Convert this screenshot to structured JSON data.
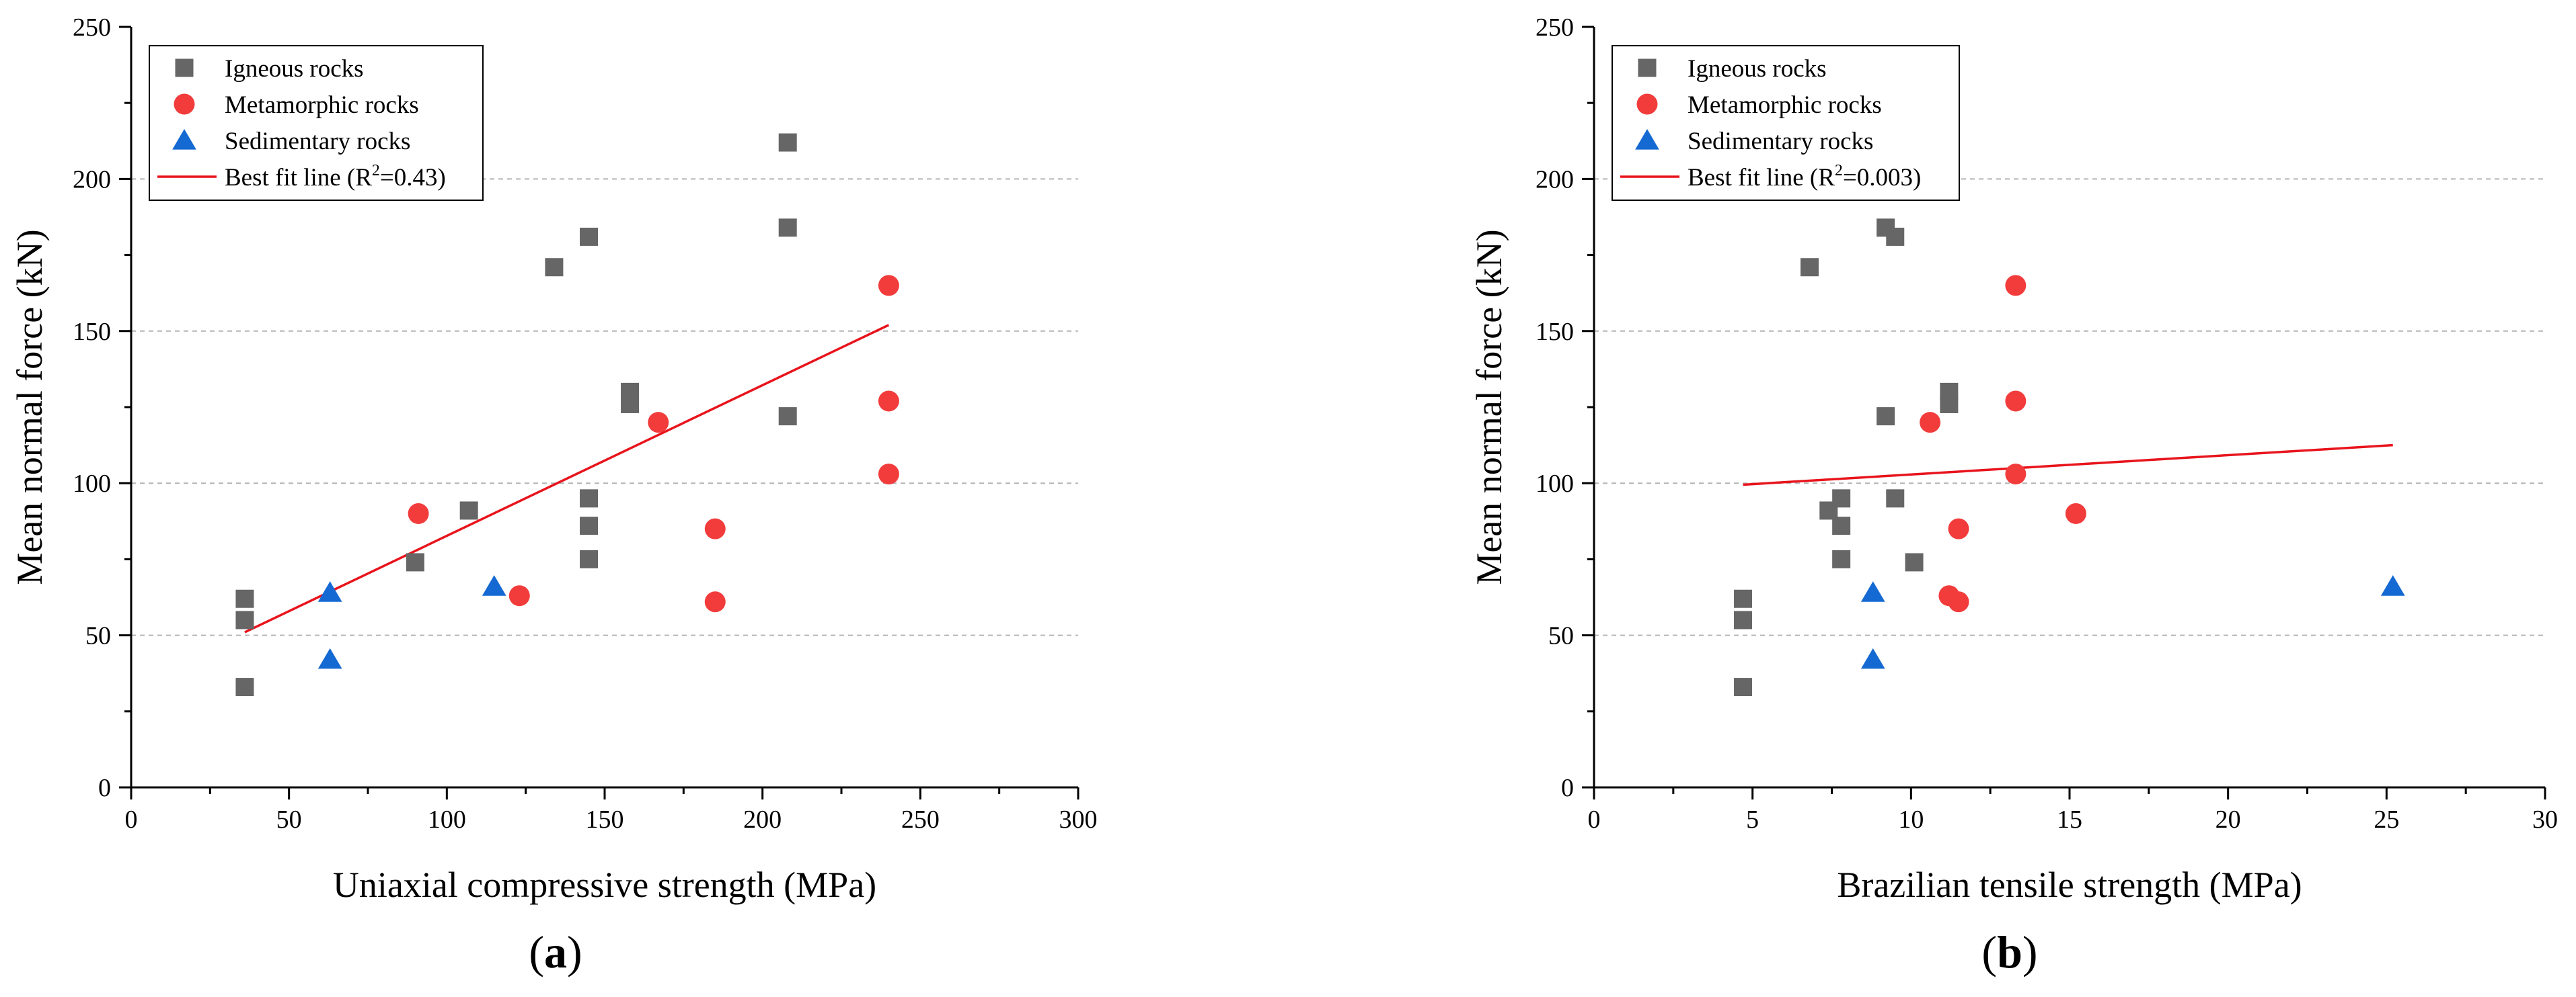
{
  "chart_data": [
    {
      "type": "scatter",
      "panel_label_prefix": "(",
      "panel_label_letter": "a",
      "panel_label_suffix": ")",
      "xlabel": "Uniaxial compressive strength (MPa)",
      "ylabel": "Mean normal force (kN)",
      "xlim": [
        0,
        300
      ],
      "ylim": [
        0,
        250
      ],
      "xticks": [
        0,
        50,
        100,
        150,
        200,
        250,
        300
      ],
      "yticks": [
        0,
        50,
        100,
        150,
        200,
        250
      ],
      "grid": "horizontal-dashed",
      "legend_position": "top-left",
      "series": [
        {
          "name": "Igneous rocks",
          "marker": "square",
          "color": "#666666",
          "points": [
            [
              36,
              62
            ],
            [
              36,
              55
            ],
            [
              36,
              33
            ],
            [
              90,
              74
            ],
            [
              107,
              91
            ],
            [
              134,
              171
            ],
            [
              145,
              181
            ],
            [
              145,
              95
            ],
            [
              145,
              86
            ],
            [
              145,
              75
            ],
            [
              158,
              130
            ],
            [
              158,
              126
            ],
            [
              208,
              212
            ],
            [
              208,
              184
            ],
            [
              208,
              122
            ]
          ]
        },
        {
          "name": "Metamorphic rocks",
          "marker": "circle",
          "color": "#f23c3c",
          "points": [
            [
              91,
              90
            ],
            [
              123,
              63
            ],
            [
              167,
              120
            ],
            [
              185,
              85
            ],
            [
              185,
              61
            ],
            [
              240,
              165
            ],
            [
              240,
              127
            ],
            [
              240,
              103
            ]
          ]
        },
        {
          "name": "Sedimentary rocks",
          "marker": "triangle",
          "color": "#1469d2",
          "points": [
            [
              63,
              64
            ],
            [
              63,
              42
            ],
            [
              115,
              66
            ]
          ]
        }
      ],
      "fit_line": {
        "legend_prefix": "Best fit line (R",
        "legend_sup": "2",
        "legend_suffix": "=0.43)",
        "color": "#e8141c",
        "x": [
          36,
          240
        ],
        "y": [
          51,
          152
        ]
      }
    },
    {
      "type": "scatter",
      "panel_label_prefix": "(",
      "panel_label_letter": "b",
      "panel_label_suffix": ")",
      "xlabel": "Brazilian tensile strength (MPa)",
      "ylabel": "Mean normal force (kN)",
      "xlim": [
        0,
        30
      ],
      "ylim": [
        0,
        250
      ],
      "xticks": [
        0,
        5,
        10,
        15,
        20,
        25,
        30
      ],
      "yticks": [
        0,
        50,
        100,
        150,
        200,
        250
      ],
      "grid": "horizontal-dashed",
      "legend_position": "top-left",
      "series": [
        {
          "name": "Igneous rocks",
          "marker": "square",
          "color": "#666666",
          "points": [
            [
              4.7,
              62
            ],
            [
              4.7,
              55
            ],
            [
              4.7,
              33
            ],
            [
              6.8,
              171
            ],
            [
              7.4,
              91
            ],
            [
              7.8,
              95
            ],
            [
              7.8,
              86
            ],
            [
              7.8,
              75
            ],
            [
              9.2,
              184
            ],
            [
              9.5,
              181
            ],
            [
              9.2,
              122
            ],
            [
              9.5,
              95
            ],
            [
              10.1,
              74
            ],
            [
              11.2,
              130
            ],
            [
              11.2,
              126
            ]
          ]
        },
        {
          "name": "Metamorphic rocks",
          "marker": "circle",
          "color": "#f23c3c",
          "points": [
            [
              10.6,
              120
            ],
            [
              11.2,
              63
            ],
            [
              11.5,
              85
            ],
            [
              11.5,
              61
            ],
            [
              13.3,
              165
            ],
            [
              13.3,
              127
            ],
            [
              13.3,
              103
            ],
            [
              15.2,
              90
            ]
          ]
        },
        {
          "name": "Sedimentary rocks",
          "marker": "triangle",
          "color": "#1469d2",
          "points": [
            [
              8.8,
              64
            ],
            [
              8.8,
              42
            ],
            [
              25.2,
              66
            ]
          ]
        }
      ],
      "fit_line": {
        "legend_prefix": "Best fit line (R",
        "legend_sup": "2",
        "legend_suffix": "=0.003)",
        "color": "#e8141c",
        "x": [
          4.7,
          25.2
        ],
        "y": [
          99.5,
          112.5
        ]
      }
    }
  ]
}
